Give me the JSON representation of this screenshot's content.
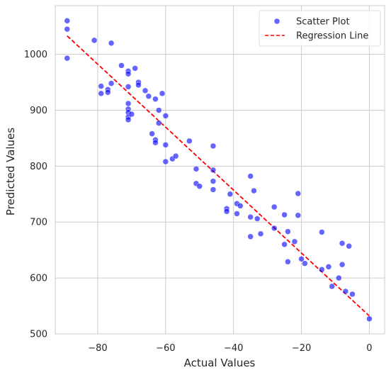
{
  "chart_data": {
    "type": "scatter",
    "title": "",
    "xlabel": "Actual Values",
    "ylabel": "Predicted Values",
    "xlim": [
      -92.5,
      4.5
    ],
    "ylim": [
      500,
      1087
    ],
    "xticks": [
      -80,
      -60,
      -40,
      -20,
      0
    ],
    "yticks": [
      500,
      600,
      700,
      800,
      900,
      1000
    ],
    "xtick_labels": [
      "−80",
      "−60",
      "−40",
      "−20",
      "0"
    ],
    "ytick_labels": [
      "500",
      "600",
      "700",
      "800",
      "900",
      "1000"
    ],
    "grid": true,
    "legend": {
      "position": "top-right",
      "entries": [
        {
          "label": "Scatter Plot",
          "marker": "circle",
          "color": "#0000ff"
        },
        {
          "label": "Regression Line",
          "marker": "dashed-line",
          "color": "#ff0000"
        }
      ]
    },
    "series": [
      {
        "name": "Scatter Plot",
        "color": "#0000ff",
        "points": [
          [
            -89,
            1060
          ],
          [
            -89,
            1045
          ],
          [
            -89,
            993
          ],
          [
            -81,
            1025
          ],
          [
            -79,
            943
          ],
          [
            -79,
            930
          ],
          [
            -77,
            937
          ],
          [
            -77,
            932
          ],
          [
            -76,
            1020
          ],
          [
            -76,
            948
          ],
          [
            -73,
            980
          ],
          [
            -71,
            970
          ],
          [
            -71,
            965
          ],
          [
            -71,
            942
          ],
          [
            -71,
            912
          ],
          [
            -71,
            902
          ],
          [
            -71,
            896
          ],
          [
            -71,
            888
          ],
          [
            -71,
            883
          ],
          [
            -70,
            893
          ],
          [
            -69,
            975
          ],
          [
            -68,
            950
          ],
          [
            -68,
            945
          ],
          [
            -66,
            935
          ],
          [
            -65,
            925
          ],
          [
            -64,
            858
          ],
          [
            -63,
            920
          ],
          [
            -63,
            847
          ],
          [
            -63,
            842
          ],
          [
            -62,
            900
          ],
          [
            -62,
            877
          ],
          [
            -61,
            930
          ],
          [
            -60,
            890
          ],
          [
            -60,
            838
          ],
          [
            -60,
            808
          ],
          [
            -58,
            813
          ],
          [
            -57,
            818
          ],
          [
            -53,
            845
          ],
          [
            -51,
            795
          ],
          [
            -51,
            769
          ],
          [
            -50,
            764
          ],
          [
            -46,
            836
          ],
          [
            -46,
            793
          ],
          [
            -46,
            773
          ],
          [
            -46,
            758
          ],
          [
            -42,
            724
          ],
          [
            -42,
            719
          ],
          [
            -41,
            750
          ],
          [
            -39,
            733
          ],
          [
            -39,
            715
          ],
          [
            -38,
            729
          ],
          [
            -35,
            782
          ],
          [
            -35,
            709
          ],
          [
            -35,
            674
          ],
          [
            -34,
            756
          ],
          [
            -33,
            706
          ],
          [
            -32,
            679
          ],
          [
            -28,
            727
          ],
          [
            -28,
            689
          ],
          [
            -25,
            713
          ],
          [
            -25,
            660
          ],
          [
            -24,
            683
          ],
          [
            -24,
            629
          ],
          [
            -22,
            665
          ],
          [
            -21,
            751
          ],
          [
            -21,
            712
          ],
          [
            -20,
            634
          ],
          [
            -19,
            626
          ],
          [
            -14,
            682
          ],
          [
            -14,
            615
          ],
          [
            -12,
            620
          ],
          [
            -11,
            585
          ],
          [
            -9,
            600
          ],
          [
            -8,
            662
          ],
          [
            -8,
            624
          ],
          [
            -7,
            576
          ],
          [
            -6,
            657
          ],
          [
            -5,
            571
          ],
          [
            0,
            527
          ]
        ]
      }
    ],
    "regression_line": {
      "name": "Regression Line",
      "color": "#ff0000",
      "x": [
        -89,
        0
      ],
      "y": [
        1033,
        532
      ]
    }
  }
}
